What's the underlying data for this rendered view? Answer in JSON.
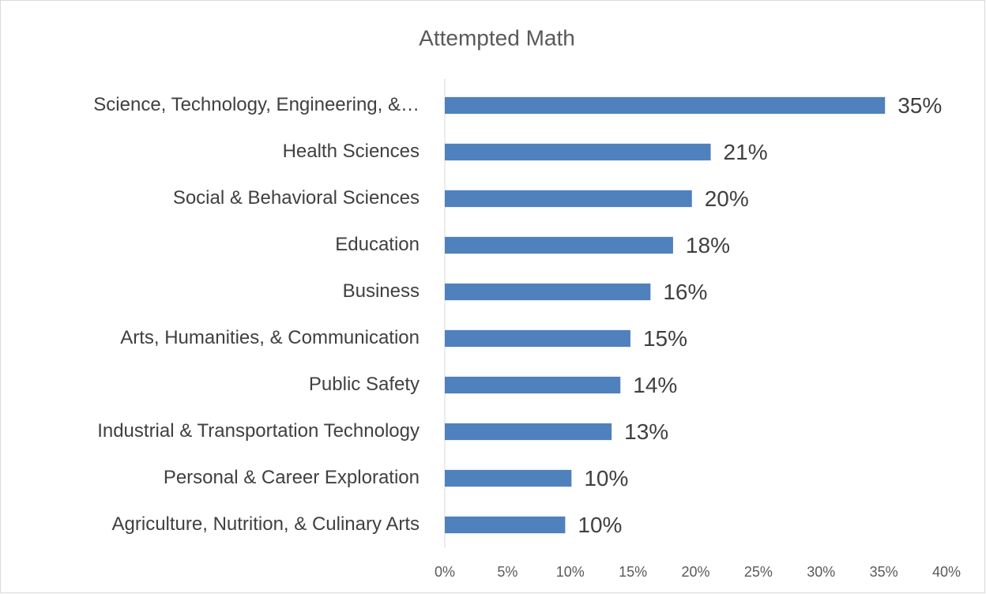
{
  "chart_data": {
    "type": "bar",
    "orientation": "horizontal",
    "title": "Attempted Math",
    "categories": [
      "Science, Technology, Engineering, &…",
      "Health Sciences",
      "Social & Behavioral Sciences",
      "Education",
      "Business",
      "Arts, Humanities, & Communication",
      "Public Safety",
      "Industrial & Transportation Technology",
      "Personal & Career Exploration",
      "Agriculture, Nutrition, & Culinary Arts"
    ],
    "values": [
      35.1,
      21.2,
      19.7,
      18.2,
      16.4,
      14.8,
      14.0,
      13.3,
      10.1,
      9.6
    ],
    "value_labels": [
      "35%",
      "21%",
      "20%",
      "18%",
      "16%",
      "15%",
      "14%",
      "13%",
      "10%",
      "10%"
    ],
    "color": "#4f81bd",
    "xlim": [
      0,
      40
    ],
    "xticks": [
      {
        "value": 0,
        "label": "0%"
      },
      {
        "value": 5,
        "label": "5%"
      },
      {
        "value": 10,
        "label": "10%"
      },
      {
        "value": 15,
        "label": "15%"
      },
      {
        "value": 20,
        "label": "20%"
      },
      {
        "value": 25,
        "label": "25%"
      },
      {
        "value": 30,
        "label": "30%"
      },
      {
        "value": 35,
        "label": "35%"
      },
      {
        "value": 40,
        "label": "40%"
      }
    ],
    "grid": false
  }
}
